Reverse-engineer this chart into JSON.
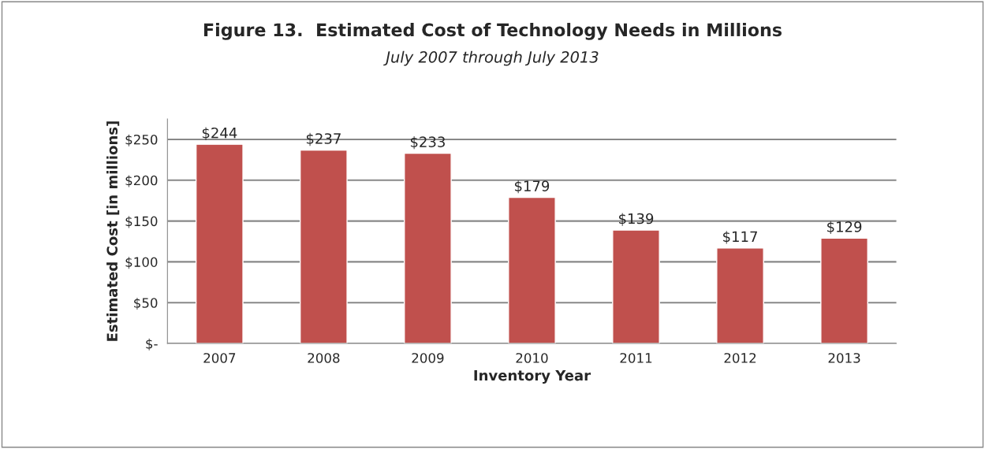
{
  "chart_data": {
    "type": "bar",
    "title": "Figure 13.  Estimated Cost of Technology Needs in Millions",
    "subtitle": "July 2007 through July 2013",
    "xlabel": "Inventory Year",
    "ylabel": "Estimated Cost [in millions]",
    "categories": [
      "2007",
      "2008",
      "2009",
      "2010",
      "2011",
      "2012",
      "2013"
    ],
    "values": [
      244,
      237,
      233,
      179,
      139,
      117,
      129
    ],
    "value_labels": [
      "$244",
      "$237",
      "$233",
      "$179",
      "$139",
      "$117",
      "$129"
    ],
    "color": "#c0504d",
    "ylim": [
      0,
      275
    ],
    "yticks": [
      {
        "value": 0,
        "label": "$-"
      },
      {
        "value": 50,
        "label": "$50"
      },
      {
        "value": 100,
        "label": "$100"
      },
      {
        "value": 150,
        "label": "$150"
      },
      {
        "value": 200,
        "label": "$200"
      },
      {
        "value": 250,
        "label": "$250"
      }
    ],
    "grid": "y",
    "legend": false
  }
}
